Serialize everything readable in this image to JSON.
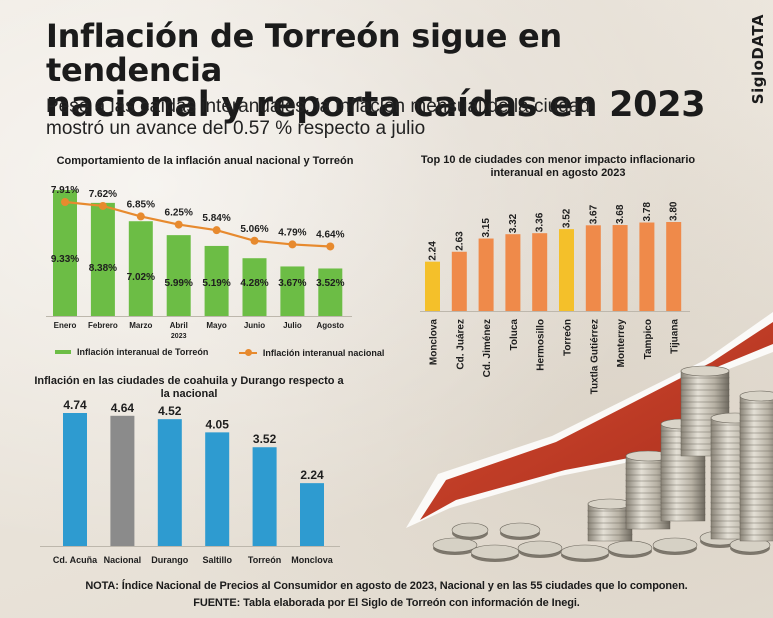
{
  "header": {
    "title_line1": "Inflación de Torreón sigue en tendencia",
    "title_line2": "nacional y reporta caídas en 2023",
    "subtitle": "Pese a las caídas interanuales, la inflación mensual de la ciudad mostró un avance del 0.57 % respecto a julio",
    "brand": "SigloDATA"
  },
  "colors": {
    "green": "#6cbd45",
    "orange": "#e78a2e",
    "orange_bar": "#ef8a4a",
    "yellow_bar": "#f4c02a",
    "blue": "#2e9bd0",
    "gray": "#8b8b8b",
    "arrow": "#c8402a"
  },
  "footer": {
    "note": "NOTA: Índice Nacional de Precios al Consumidor en agosto de 2023, Nacional y en las 55 ciudades que lo componen.",
    "source": "FUENTE: Tabla elaborada por El Siglo de Torreón con información de Inegi."
  },
  "chart_data": [
    {
      "type": "bar",
      "title": "Comportamiento de la inflación anual nacional y Torreón",
      "categories": [
        "Enero",
        "Febrero",
        "Marzo",
        "Abril 2023",
        "Mayo",
        "Junio",
        "Julio",
        "Agosto"
      ],
      "series": [
        {
          "name": "Inflación interanual de Torreón",
          "type": "bar",
          "values": [
            9.33,
            8.38,
            7.02,
            5.99,
            5.19,
            4.28,
            3.67,
            3.52
          ],
          "labels": [
            "9.33%",
            "8.38%",
            "7.02%",
            "5.99%",
            "5.19%",
            "4.28%",
            "3.67%",
            "3.52%"
          ]
        },
        {
          "name": "Inflación interanual nacional",
          "type": "line",
          "values": [
            7.91,
            7.62,
            6.85,
            6.25,
            5.84,
            5.06,
            4.79,
            4.64
          ],
          "labels": [
            "7.91%",
            "7.62%",
            "6.85%",
            "6.25%",
            "5.84%",
            "5.06%",
            "4.79%",
            "4.64%"
          ]
        }
      ],
      "ylim": [
        0,
        10
      ],
      "legend": "bottom"
    },
    {
      "type": "bar",
      "title": "Top 10 de ciudades con menor impacto inflacionario interanual en agosto 2023",
      "categories": [
        "Monclova",
        "Cd. Juárez",
        "Cd. Jiménez",
        "Toluca",
        "Hermosillo",
        "Torreón",
        "Tuxtla Gutiérrez",
        "Monterrey",
        "Tampico",
        "Tijuana"
      ],
      "values": [
        2.24,
        2.63,
        3.15,
        3.32,
        3.36,
        3.52,
        3.67,
        3.68,
        3.78,
        3.8
      ],
      "labels": [
        "2.24",
        "2.63",
        "3.15",
        "3.32",
        "3.36",
        "3.52",
        "3.67",
        "3.68",
        "3.78",
        "3.80"
      ],
      "highlighted": [
        "Monclova",
        "Torreón"
      ],
      "ylim": [
        0,
        3.8
      ]
    },
    {
      "type": "bar",
      "title": "Inflación en las ciudades de coahuila y Durango respecto a la nacional",
      "categories": [
        "Cd. Acuña",
        "Nacional",
        "Durango",
        "Saltillo",
        "Torreón",
        "Monclova"
      ],
      "values": [
        4.74,
        4.64,
        4.52,
        4.05,
        3.52,
        2.24
      ],
      "labels": [
        "4.74",
        "4.64",
        "4.52",
        "4.05",
        "3.52",
        "2.24"
      ],
      "highlighted": [
        "Nacional"
      ],
      "ylim": [
        0,
        4.74
      ]
    }
  ]
}
